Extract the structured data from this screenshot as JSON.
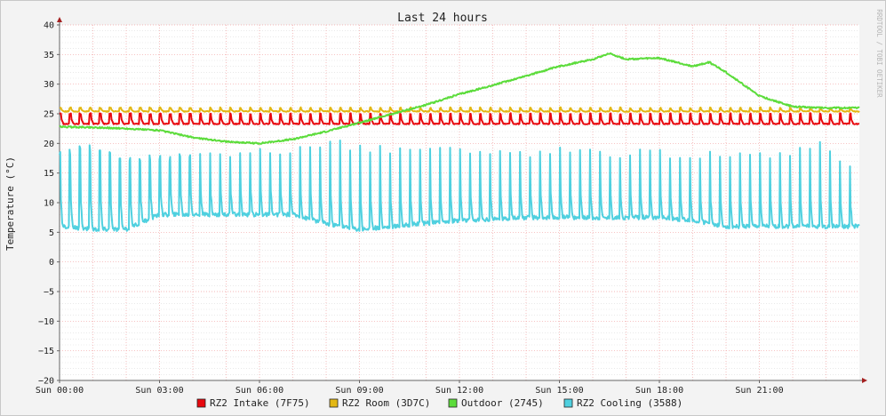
{
  "chart_data": {
    "type": "line",
    "title": "Last 24 hours",
    "ylabel": "Temperature (°C)",
    "xlabel": "",
    "ylim": [
      -20,
      40
    ],
    "yticks": [
      "40",
      "35",
      "30",
      "25",
      "20",
      "15",
      "10",
      "5",
      "0",
      "−5",
      "−10",
      "−15",
      "−20"
    ],
    "xlim_hours": [
      0,
      24
    ],
    "xtick_labels": [
      "Sun 00:00",
      "Sun 03:00",
      "Sun 06:00",
      "Sun 09:00",
      "Sun 12:00",
      "Sun 15:00",
      "Sun 18:00",
      "Sun 21:00"
    ],
    "grid": true,
    "legend_position": "bottom",
    "watermark": "RRDTOOL / TOBI OETIKER",
    "series": [
      {
        "name": "RZ2 Intake (7F75)",
        "color": "#e8090f",
        "pattern": "oscillating",
        "x": [
          0,
          24
        ],
        "values": [
          23.3,
          23.3
        ],
        "peak_values": [
          25.1,
          25.1
        ],
        "period_hours": 0.3
      },
      {
        "name": "RZ2 Room (3D7C)",
        "color": "#e3b814",
        "pattern": "oscillating",
        "x": [
          0,
          24
        ],
        "values": [
          25.4,
          25.4
        ],
        "peak_values": [
          26.1,
          26.1
        ],
        "period_hours": 0.3
      },
      {
        "name": "Outdoor (2745)",
        "color": "#5cdc3b",
        "pattern": "smooth",
        "x": [
          0,
          1,
          2,
          3,
          4,
          5,
          6,
          7,
          8,
          9,
          10,
          11,
          12,
          13,
          14,
          15,
          16,
          16.5,
          17,
          18,
          19,
          19.5,
          20,
          21,
          22,
          23,
          24
        ],
        "values": [
          22.8,
          22.7,
          22.5,
          22.2,
          21.0,
          20.3,
          20.0,
          20.7,
          22.0,
          23.5,
          25.0,
          26.5,
          28.3,
          29.8,
          31.4,
          33.0,
          34.2,
          35.2,
          34.2,
          34.4,
          33.0,
          33.7,
          32.0,
          28.0,
          26.2,
          26.0,
          26.0
        ]
      },
      {
        "name": "RZ2 Cooling (3588)",
        "color": "#4fd0df",
        "pattern": "spiky",
        "x": [
          0,
          1,
          2,
          3,
          4,
          5,
          6,
          7,
          8,
          9,
          10,
          11,
          12,
          13,
          14,
          15,
          16,
          17,
          18,
          19,
          20,
          21,
          22,
          23,
          24
        ],
        "values": [
          6.0,
          5.5,
          5.5,
          8.0,
          8.0,
          8.0,
          8.0,
          8.0,
          6.5,
          5.5,
          6.0,
          6.5,
          7.0,
          7.2,
          7.5,
          7.5,
          7.5,
          7.5,
          7.5,
          7.0,
          6.0,
          6.0,
          6.0,
          6.0,
          6.0
        ],
        "peak_values": [
          19.0,
          20.0,
          18.5,
          18.0,
          18.5,
          19.0,
          20.0,
          19.0,
          21.0,
          20.0,
          19.5,
          19.5,
          19.5,
          19.0,
          19.0,
          19.5,
          19.0,
          19.0,
          19.0,
          18.5,
          19.0,
          19.0,
          19.0,
          20.5,
          15.5
        ],
        "period_hours": 0.3
      }
    ]
  }
}
